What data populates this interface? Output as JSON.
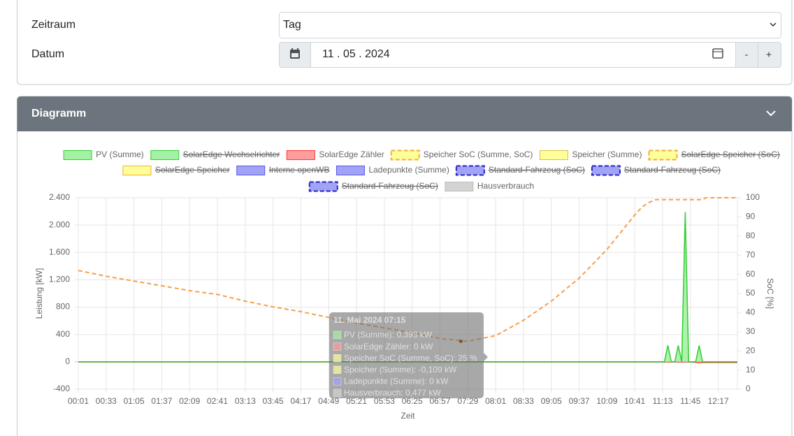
{
  "form": {
    "period_label": "Zeitraum",
    "period_value": "Tag",
    "date_label": "Datum",
    "date_value": "11 . 05 . 2024",
    "minus": "-",
    "plus": "+"
  },
  "panel_title": "Diagramm",
  "chart_data": {
    "type": "line",
    "ylabel": "Leistung [kW]",
    "y2label": "SoC [%]",
    "xlabel": "Zeit",
    "x": [
      "00:01",
      "00:33",
      "01:05",
      "01:37",
      "02:09",
      "02:41",
      "03:13",
      "03:45",
      "04:17",
      "04:49",
      "05:21",
      "05:53",
      "06:25",
      "06:57",
      "07:29",
      "08:01",
      "08:33",
      "09:05",
      "09:37",
      "10:09",
      "10:41",
      "10:49",
      "10:57",
      "11:05",
      "11:11",
      "11:15",
      "11:19",
      "11:23",
      "11:27",
      "11:31",
      "11:35",
      "11:39",
      "11:43",
      "11:47",
      "11:51",
      "11:55",
      "11:59",
      "12:03",
      "12:09",
      "12:17",
      "12:25",
      "12:33",
      "12:39"
    ],
    "xlim": [
      "00:01",
      "12:39"
    ],
    "xticks": [
      "00:01",
      "00:33",
      "01:05",
      "01:37",
      "02:09",
      "02:41",
      "03:13",
      "03:45",
      "04:17",
      "04:49",
      "05:21",
      "05:53",
      "06:25",
      "06:57",
      "07:29",
      "08:01",
      "08:33",
      "09:05",
      "09:37",
      "10:09",
      "10:41",
      "11:13",
      "11:45",
      "12:17"
    ],
    "ylim": [
      -400,
      2400
    ],
    "yticks": [
      {
        "value": -400,
        "label": "-400"
      },
      0,
      400,
      800,
      {
        "value": 1200,
        "label": "1.200"
      },
      {
        "value": 1600,
        "label": "1.600"
      },
      {
        "value": 2000,
        "label": "2.000"
      },
      {
        "value": 2400,
        "label": "2.400"
      }
    ],
    "y2lim": [
      0,
      100
    ],
    "y2ticks": [
      0,
      10,
      20,
      30,
      40,
      50,
      60,
      70,
      80,
      90,
      100
    ],
    "grid": true,
    "series": [
      {
        "name": "PV (Summe)",
        "color": "#33cc33",
        "fill": "#a3f2a3",
        "area": true,
        "values": [
          0,
          0,
          0,
          0,
          0,
          0,
          0,
          0,
          0,
          0,
          0,
          0,
          0,
          0,
          0,
          0,
          0,
          0,
          0,
          0,
          0,
          0,
          0,
          0,
          0,
          0,
          240,
          0,
          0,
          240,
          0,
          2190,
          0,
          0,
          0,
          240,
          0,
          0,
          0,
          0,
          0,
          0,
          0
        ]
      },
      {
        "name": "SolarEdge Wechselrichter",
        "color": "#33cc33",
        "fill": "#a3f2a3",
        "hidden": true
      },
      {
        "name": "SolarEdge Zähler",
        "color": "#ff3333",
        "fill": "#ff9c9c",
        "values": [
          0,
          0,
          0,
          0,
          0,
          0,
          0,
          0,
          0,
          0,
          0,
          0,
          0,
          0,
          0,
          0,
          0,
          0,
          0,
          0,
          0,
          0,
          0,
          0,
          0,
          0,
          0,
          0,
          0,
          0,
          0,
          0,
          0,
          0,
          -10,
          -10,
          -10,
          -10,
          -10,
          -10,
          -10,
          -10,
          -10
        ]
      },
      {
        "name": "Speicher SoC (Summe, SoC)",
        "color": "#f5a04a",
        "fill": "#ffff99",
        "border": "#f0b030",
        "dashed": true,
        "axis": "y2",
        "values": [
          62,
          59,
          56.5,
          54,
          51.5,
          49.5,
          46,
          43,
          40.5,
          37.5,
          34.5,
          32,
          29.5,
          26.5,
          25,
          28,
          36,
          46,
          58,
          73,
          91,
          95,
          97.5,
          99,
          99,
          99,
          99,
          99,
          99,
          99,
          99,
          99,
          99,
          99,
          99,
          99,
          99,
          100,
          100,
          100,
          100,
          100,
          100
        ]
      },
      {
        "name": "Speicher (Summe)",
        "color": "#d6c04a",
        "fill": "#ffff99",
        "values": [
          0,
          0,
          0,
          0,
          0,
          0,
          0,
          0,
          0,
          0,
          0,
          0,
          0,
          0,
          0,
          0,
          0,
          0,
          0,
          0,
          0,
          0,
          0,
          0,
          0,
          0,
          0,
          0,
          0,
          0,
          0,
          0,
          0,
          0,
          0,
          0,
          0,
          0,
          0,
          0,
          0,
          0,
          0
        ]
      },
      {
        "name": "SolarEdge Speicher (SoC)",
        "color": "#f0b030",
        "fill": "#ffff99",
        "dashed": true,
        "hidden": true
      },
      {
        "name": "SolarEdge Speicher",
        "color": "#f0b030",
        "fill": "#ffff99",
        "hidden": true
      },
      {
        "name": "Interne openWB",
        "color": "#5555ee",
        "fill": "#a3a3f5",
        "hidden": true
      },
      {
        "name": "Ladepunkte (Summe)",
        "color": "#5555ee",
        "fill": "#a3a3f5",
        "values": [
          0,
          0,
          0,
          0,
          0,
          0,
          0,
          0,
          0,
          0,
          0,
          0,
          0,
          0,
          0,
          0,
          0,
          0,
          0,
          0,
          0,
          0,
          0,
          0,
          0,
          0,
          0,
          0,
          0,
          0,
          0,
          0,
          0,
          0,
          0,
          0,
          0,
          0,
          0,
          0,
          0,
          0,
          0
        ]
      },
      {
        "name": "Standard-Fahrzeug (SoC)",
        "color": "#2222cc",
        "fill": "#a3a3f5",
        "dashed": true,
        "hidden": true
      },
      {
        "name": "Standard-Fahrzeug (SoC)",
        "color": "#2222cc",
        "fill": "#a3a3f5",
        "dashed": true,
        "hidden": true
      },
      {
        "name": "Standard-Fahrzeug (SoC)",
        "color": "#2222cc",
        "fill": "#a3a3f5",
        "dashed": true,
        "hidden": true
      },
      {
        "name": "Hausverbrauch",
        "color": "#8a6a3a",
        "fill": "#d3d3d3",
        "border": "#bbbbbb",
        "values": [
          0,
          0,
          0,
          0,
          0,
          0,
          0,
          0,
          0,
          0,
          0,
          0,
          0,
          0,
          0,
          0,
          0,
          0,
          0,
          0,
          0,
          0,
          0,
          0,
          0,
          0,
          0,
          0,
          0,
          0,
          0,
          0,
          0,
          0,
          0,
          0,
          0,
          0,
          0,
          0,
          0,
          0,
          0
        ]
      }
    ],
    "tooltip": {
      "title": "11. Mai 2024 07:15",
      "at": "07:21",
      "lines": [
        {
          "text": "PV (Summe): 0,393 kW",
          "color": "#a3f2a3"
        },
        {
          "text": "SolarEdge Zähler: 0 kW",
          "color": "#ff9c9c"
        },
        {
          "text": "Speicher SoC (Summe, SoC): 25 %",
          "color": "#ffff99"
        },
        {
          "text": "Speicher (Summe): -0,109 kW",
          "color": "#ffff99"
        },
        {
          "text": "Ladepunkte (Summe): 0 kW",
          "color": "#a3a3f5"
        },
        {
          "text": "Hausverbrauch: 0,477 kW",
          "color": "#d3d3d3"
        }
      ]
    }
  }
}
